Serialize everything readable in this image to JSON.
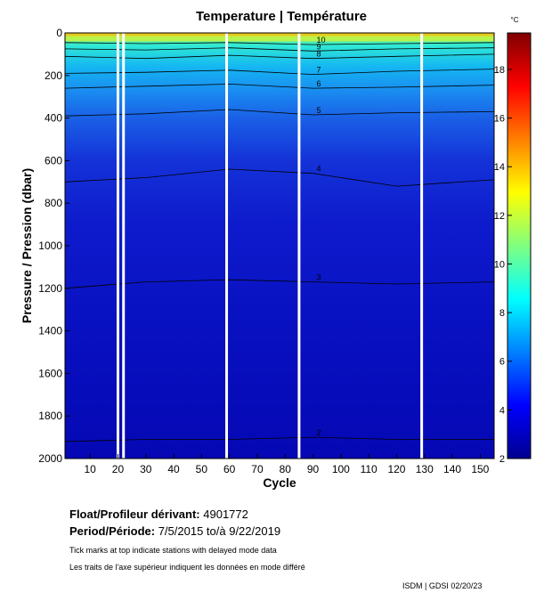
{
  "chart_data": {
    "type": "heatmap",
    "title": "Temperature | Température",
    "xlabel": "Cycle",
    "ylabel": "Pressure / Pression (dbar)",
    "xlim": [
      1,
      155
    ],
    "ylim": [
      0,
      2000
    ],
    "y_inverted": true,
    "x_ticks": [
      10,
      20,
      30,
      40,
      50,
      60,
      70,
      80,
      90,
      100,
      110,
      120,
      130,
      140,
      150
    ],
    "y_ticks": [
      0,
      200,
      400,
      600,
      800,
      1000,
      1200,
      1400,
      1600,
      1800,
      2000
    ],
    "colorbar": {
      "unit": "°C",
      "range": [
        2,
        19.5
      ],
      "ticks": [
        2,
        4,
        6,
        8,
        10,
        12,
        14,
        16,
        18
      ],
      "colormap": "jet"
    },
    "data_gaps_cycles": [
      20,
      22,
      59,
      85,
      129
    ],
    "temperature_profile": {
      "pressure": [
        0,
        30,
        60,
        100,
        150,
        200,
        280,
        380,
        500,
        700,
        900,
        1200,
        1500,
        1800,
        2000
      ],
      "temperature": [
        16,
        12,
        9.5,
        8.2,
        7.5,
        6.7,
        5.8,
        4.9,
        4.4,
        3.9,
        3.5,
        3.0,
        2.6,
        2.3,
        2.1
      ]
    },
    "contours": [
      {
        "level": "10",
        "x": [
          1,
          30,
          60,
          90,
          120,
          155
        ],
        "y": [
          45,
          50,
          45,
          55,
          50,
          45
        ]
      },
      {
        "level": "9",
        "x": [
          1,
          30,
          60,
          90,
          120,
          155
        ],
        "y": [
          75,
          80,
          70,
          85,
          75,
          70
        ]
      },
      {
        "level": "8",
        "x": [
          1,
          30,
          60,
          90,
          120,
          155
        ],
        "y": [
          110,
          120,
          105,
          120,
          110,
          100
        ]
      },
      {
        "level": "7",
        "x": [
          1,
          30,
          60,
          90,
          120,
          155
        ],
        "y": [
          190,
          185,
          175,
          195,
          180,
          170
        ]
      },
      {
        "level": "6",
        "x": [
          1,
          30,
          60,
          90,
          120,
          155
        ],
        "y": [
          260,
          250,
          240,
          260,
          255,
          245
        ]
      },
      {
        "level": "5",
        "x": [
          1,
          30,
          60,
          90,
          120,
          155
        ],
        "y": [
          390,
          380,
          360,
          385,
          375,
          370
        ]
      },
      {
        "level": "4",
        "x": [
          1,
          30,
          60,
          90,
          120,
          155
        ],
        "y": [
          700,
          680,
          640,
          660,
          720,
          690
        ]
      },
      {
        "level": "3",
        "x": [
          1,
          30,
          60,
          90,
          120,
          155
        ],
        "y": [
          1200,
          1170,
          1160,
          1170,
          1180,
          1170
        ]
      },
      {
        "level": "2",
        "x": [
          1,
          30,
          60,
          90,
          120,
          155
        ],
        "y": [
          1920,
          1910,
          1910,
          1900,
          1910,
          1910
        ]
      }
    ]
  },
  "footer": {
    "float_label": "Float/Profileur dérivant:",
    "float_value": "4901772",
    "period_label": "Period/Période:",
    "period_value": "7/5/2015  to/à  9/22/2019",
    "note_en": "Tick marks at top indicate stations with delayed mode data",
    "note_fr": "Les traits de l'axe supérieur indiquent les données en mode différé",
    "credit": "ISDM | GDSI  02/20/23"
  }
}
